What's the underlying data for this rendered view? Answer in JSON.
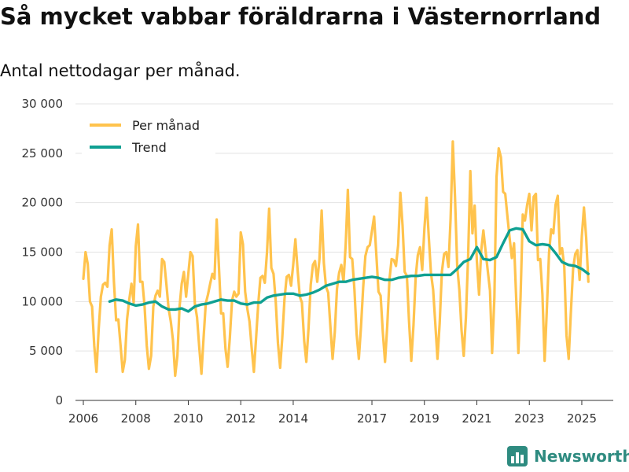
{
  "title": "Så mycket vabbar föräldrarna i Västernorrland",
  "subtitle": "Antal nettodagar per månad.",
  "brand": {
    "name": "Newsworthy",
    "color": "#2e8b80",
    "icon": "bar-chart-logo-icon"
  },
  "colors": {
    "per_month": "#ffc34d",
    "trend": "#0fa092",
    "grid": "#e3e3e3",
    "axis": "#333333"
  },
  "chart_data": {
    "type": "line",
    "title": "Så mycket vabbar föräldrarna i Västernorrland",
    "subtitle": "Antal nettodagar per månad.",
    "xlabel": "",
    "ylabel": "",
    "xlim": [
      2005.7,
      2026.2
    ],
    "ylim": [
      0,
      30000
    ],
    "yticks": [
      0,
      5000,
      10000,
      15000,
      20000,
      25000,
      30000
    ],
    "ytick_labels": [
      "0",
      "5 000",
      "10 000",
      "15 000",
      "20 000",
      "25 000",
      "30 000"
    ],
    "xticks": [
      2006,
      2008,
      2010,
      2012,
      2014,
      2017,
      2019,
      2021,
      2023,
      2025
    ],
    "xtick_labels": [
      "2006",
      "2008",
      "2010",
      "2012",
      "2014",
      "2017",
      "2019",
      "2021",
      "2023",
      "2025"
    ],
    "grid": true,
    "legend_position": "top-left",
    "series": [
      {
        "name": "Per månad",
        "x": [
          2006.0,
          2006.083,
          2006.167,
          2006.25,
          2006.333,
          2006.417,
          2006.5,
          2006.583,
          2006.667,
          2006.75,
          2006.833,
          2006.917,
          2007.0,
          2007.083,
          2007.167,
          2007.25,
          2007.333,
          2007.417,
          2007.5,
          2007.583,
          2007.667,
          2007.75,
          2007.833,
          2007.917,
          2008.0,
          2008.083,
          2008.167,
          2008.25,
          2008.333,
          2008.417,
          2008.5,
          2008.583,
          2008.667,
          2008.75,
          2008.833,
          2008.917,
          2009.0,
          2009.083,
          2009.167,
          2009.25,
          2009.333,
          2009.417,
          2009.5,
          2009.583,
          2009.667,
          2009.75,
          2009.833,
          2009.917,
          2010.0,
          2010.083,
          2010.167,
          2010.25,
          2010.333,
          2010.417,
          2010.5,
          2010.583,
          2010.667,
          2010.75,
          2010.833,
          2010.917,
          2011.0,
          2011.083,
          2011.167,
          2011.25,
          2011.333,
          2011.417,
          2011.5,
          2011.583,
          2011.667,
          2011.75,
          2011.833,
          2011.917,
          2012.0,
          2012.083,
          2012.167,
          2012.25,
          2012.333,
          2012.417,
          2012.5,
          2012.583,
          2012.667,
          2012.75,
          2012.833,
          2012.917,
          2013.0,
          2013.083,
          2013.167,
          2013.25,
          2013.333,
          2013.417,
          2013.5,
          2013.583,
          2013.667,
          2013.75,
          2013.833,
          2013.917,
          2014.0,
          2014.083,
          2014.167,
          2014.25,
          2014.333,
          2014.417,
          2014.5,
          2014.583,
          2014.667,
          2014.75,
          2014.833,
          2014.917,
          2015.0,
          2015.083,
          2015.167,
          2015.25,
          2015.333,
          2015.417,
          2015.5,
          2015.583,
          2015.667,
          2015.75,
          2015.833,
          2015.917,
          2016.0,
          2016.083,
          2016.167,
          2016.25,
          2016.333,
          2016.417,
          2016.5,
          2016.583,
          2016.667,
          2016.75,
          2016.833,
          2016.917,
          2017.0,
          2017.083,
          2017.167,
          2017.25,
          2017.333,
          2017.417,
          2017.5,
          2017.583,
          2017.667,
          2017.75,
          2017.833,
          2017.917,
          2018.0,
          2018.083,
          2018.167,
          2018.25,
          2018.333,
          2018.417,
          2018.5,
          2018.583,
          2018.667,
          2018.75,
          2018.833,
          2018.917,
          2019.0,
          2019.083,
          2019.167,
          2019.25,
          2019.333,
          2019.417,
          2019.5,
          2019.583,
          2019.667,
          2019.75,
          2019.833,
          2019.917,
          2020.0,
          2020.083,
          2020.167,
          2020.25,
          2020.333,
          2020.417,
          2020.5,
          2020.583,
          2020.667,
          2020.75,
          2020.833,
          2020.917,
          2021.0,
          2021.083,
          2021.167,
          2021.25,
          2021.333,
          2021.417,
          2021.5,
          2021.583,
          2021.667,
          2021.75,
          2021.833,
          2021.917,
          2022.0,
          2022.083,
          2022.167,
          2022.25,
          2022.333,
          2022.417,
          2022.5,
          2022.583,
          2022.667,
          2022.75,
          2022.833,
          2022.917,
          2023.0,
          2023.083,
          2023.167,
          2023.25,
          2023.333,
          2023.417,
          2023.5,
          2023.583,
          2023.667,
          2023.75,
          2023.833,
          2023.917,
          2024.0,
          2024.083,
          2024.167,
          2024.25,
          2024.333,
          2024.417,
          2024.5,
          2024.583,
          2024.667,
          2024.75,
          2024.833,
          2024.917,
          2025.0,
          2025.083,
          2025.167,
          2025.25
        ],
        "values": [
          12300,
          15000,
          13800,
          10000,
          9500,
          5500,
          2900,
          7200,
          10500,
          11700,
          11900,
          11500,
          15700,
          17300,
          12000,
          8100,
          8200,
          5600,
          2900,
          4100,
          8200,
          10200,
          11800,
          9900,
          15600,
          17800,
          12000,
          12000,
          9500,
          5500,
          3200,
          4500,
          9500,
          10600,
          11100,
          10500,
          14300,
          14000,
          11700,
          9300,
          8000,
          6100,
          2500,
          4500,
          9500,
          11800,
          13000,
          10500,
          12800,
          15000,
          14600,
          9800,
          8400,
          5400,
          2700,
          6300,
          9800,
          10700,
          11800,
          12800,
          12300,
          18300,
          13600,
          8800,
          8800,
          5200,
          3400,
          6300,
          10100,
          11000,
          10500,
          10800,
          17000,
          15800,
          11000,
          9300,
          8000,
          5300,
          2900,
          6300,
          9800,
          12400,
          12600,
          11900,
          15000,
          19400,
          13400,
          12800,
          10000,
          5800,
          3300,
          6300,
          10200,
          12500,
          12700,
          11600,
          13700,
          16300,
          13200,
          10500,
          9900,
          6000,
          3900,
          7300,
          11700,
          13700,
          14100,
          12000,
          14300,
          19200,
          13900,
          11500,
          10900,
          7500,
          4200,
          6900,
          11300,
          12900,
          13700,
          12000,
          15800,
          21300,
          14500,
          14300,
          11200,
          6700,
          4200,
          7400,
          11400,
          14600,
          15500,
          15700,
          17100,
          18600,
          14800,
          11000,
          10600,
          6900,
          3900,
          7500,
          12200,
          14300,
          14200,
          13600,
          15700,
          21000,
          17700,
          13000,
          12600,
          7900,
          4000,
          7600,
          12500,
          14700,
          15500,
          13200,
          17400,
          20500,
          16600,
          12900,
          11200,
          7700,
          4200,
          7800,
          13000,
          14800,
          15000,
          13500,
          18400,
          26200,
          20600,
          13600,
          11200,
          7100,
          4500,
          8400,
          14600,
          23200,
          16900,
          19700,
          14100,
          10700,
          15200,
          17200,
          15100,
          13100,
          11100,
          4800,
          10400,
          22600,
          25500,
          24600,
          21100,
          20900,
          18600,
          16400,
          14400,
          15900,
          10400,
          4800,
          10500,
          18800,
          18200,
          19800,
          20900,
          17200,
          20600,
          20900,
          14200,
          14300,
          10700,
          4000,
          9200,
          14900,
          17300,
          16900,
          19800,
          20700,
          14800,
          15400,
          13500,
          6600,
          4200,
          8800,
          13300,
          14800,
          15200,
          12200,
          16600,
          19500,
          16500,
          12000
        ]
      },
      {
        "name": "Trend",
        "x": [
          2007.0,
          2007.25,
          2007.5,
          2007.75,
          2008.0,
          2008.25,
          2008.5,
          2008.75,
          2009.0,
          2009.25,
          2009.5,
          2009.75,
          2010.0,
          2010.25,
          2010.5,
          2010.75,
          2011.0,
          2011.25,
          2011.5,
          2011.75,
          2012.0,
          2012.25,
          2012.5,
          2012.75,
          2013.0,
          2013.25,
          2013.5,
          2013.75,
          2014.0,
          2014.25,
          2014.5,
          2014.75,
          2015.0,
          2015.25,
          2015.5,
          2015.75,
          2016.0,
          2016.25,
          2016.5,
          2016.75,
          2017.0,
          2017.25,
          2017.5,
          2017.75,
          2018.0,
          2018.25,
          2018.5,
          2018.75,
          2019.0,
          2019.25,
          2019.5,
          2019.75,
          2020.0,
          2020.25,
          2020.5,
          2020.75,
          2021.0,
          2021.25,
          2021.5,
          2021.75,
          2022.0,
          2022.25,
          2022.5,
          2022.75,
          2023.0,
          2023.25,
          2023.5,
          2023.75,
          2024.0,
          2024.25,
          2024.5,
          2024.75,
          2025.0,
          2025.25
        ],
        "values": [
          10000,
          10200,
          10100,
          9800,
          9600,
          9700,
          9900,
          10000,
          9500,
          9200,
          9200,
          9300,
          9000,
          9500,
          9700,
          9800,
          10000,
          10200,
          10100,
          10100,
          9800,
          9700,
          9900,
          9900,
          10400,
          10600,
          10700,
          10800,
          10800,
          10600,
          10700,
          10900,
          11200,
          11600,
          11800,
          12000,
          12000,
          12200,
          12300,
          12400,
          12500,
          12400,
          12200,
          12200,
          12400,
          12500,
          12600,
          12600,
          12700,
          12700,
          12700,
          12700,
          12700,
          13300,
          14000,
          14300,
          15500,
          14300,
          14200,
          14500,
          15900,
          17200,
          17400,
          17300,
          16100,
          15700,
          15800,
          15700,
          14900,
          14000,
          13700,
          13600,
          13300,
          12800
        ]
      }
    ]
  }
}
